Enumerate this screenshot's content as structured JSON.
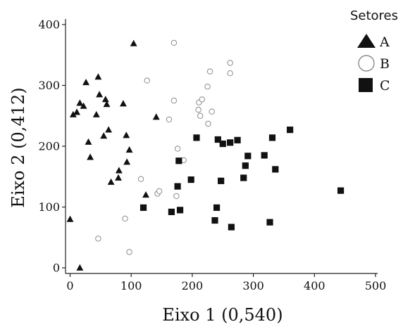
{
  "chart_data": {
    "type": "scatter",
    "xlabel": "Eixo 1 (0,540)",
    "ylabel": "Eixo 2 (0,412)",
    "xlim": [
      -5,
      505
    ],
    "ylim": [
      -8,
      408
    ],
    "xticks": [
      0,
      100,
      200,
      300,
      400,
      500
    ],
    "yticks": [
      0,
      100,
      200,
      300,
      400
    ],
    "grid": false,
    "legend": {
      "title": "Setores",
      "position": "top-right"
    },
    "series": [
      {
        "name": "A",
        "marker": "triangle",
        "color": "#111111",
        "points": [
          [
            0,
            80
          ],
          [
            5,
            252
          ],
          [
            11,
            256
          ],
          [
            16,
            271
          ],
          [
            22,
            266
          ],
          [
            26,
            305
          ],
          [
            30,
            207
          ],
          [
            33,
            182
          ],
          [
            43,
            252
          ],
          [
            46,
            314
          ],
          [
            48,
            285
          ],
          [
            55,
            217
          ],
          [
            58,
            277
          ],
          [
            60,
            269
          ],
          [
            63,
            227
          ],
          [
            67,
            141
          ],
          [
            79,
            148
          ],
          [
            80,
            160
          ],
          [
            87,
            270
          ],
          [
            92,
            218
          ],
          [
            93,
            174
          ],
          [
            97,
            194
          ],
          [
            104,
            369
          ],
          [
            141,
            248
          ],
          [
            124,
            120
          ],
          [
            16,
            0
          ]
        ]
      },
      {
        "name": "B",
        "marker": "circle",
        "color": "#888888",
        "points": [
          [
            46,
            48
          ],
          [
            90,
            81
          ],
          [
            97,
            26
          ],
          [
            116,
            146
          ],
          [
            126,
            308
          ],
          [
            143,
            122
          ],
          [
            146,
            126
          ],
          [
            162,
            244
          ],
          [
            170,
            370
          ],
          [
            170,
            275
          ],
          [
            174,
            118
          ],
          [
            176,
            196
          ],
          [
            186,
            177
          ],
          [
            210,
            260
          ],
          [
            211,
            272
          ],
          [
            213,
            250
          ],
          [
            216,
            277
          ],
          [
            225,
            298
          ],
          [
            226,
            237
          ],
          [
            229,
            323
          ],
          [
            232,
            257
          ],
          [
            262,
            337
          ],
          [
            262,
            320
          ]
        ]
      },
      {
        "name": "C",
        "marker": "square",
        "color": "#111111",
        "points": [
          [
            120,
            99
          ],
          [
            166,
            92
          ],
          [
            176,
            134
          ],
          [
            178,
            176
          ],
          [
            180,
            95
          ],
          [
            198,
            145
          ],
          [
            207,
            214
          ],
          [
            237,
            78
          ],
          [
            240,
            99
          ],
          [
            242,
            211
          ],
          [
            247,
            143
          ],
          [
            250,
            204
          ],
          [
            262,
            206
          ],
          [
            264,
            67
          ],
          [
            274,
            210
          ],
          [
            284,
            148
          ],
          [
            287,
            168
          ],
          [
            291,
            184
          ],
          [
            318,
            185
          ],
          [
            327,
            75
          ],
          [
            331,
            214
          ],
          [
            336,
            162
          ],
          [
            360,
            227
          ],
          [
            443,
            127
          ]
        ]
      }
    ]
  }
}
